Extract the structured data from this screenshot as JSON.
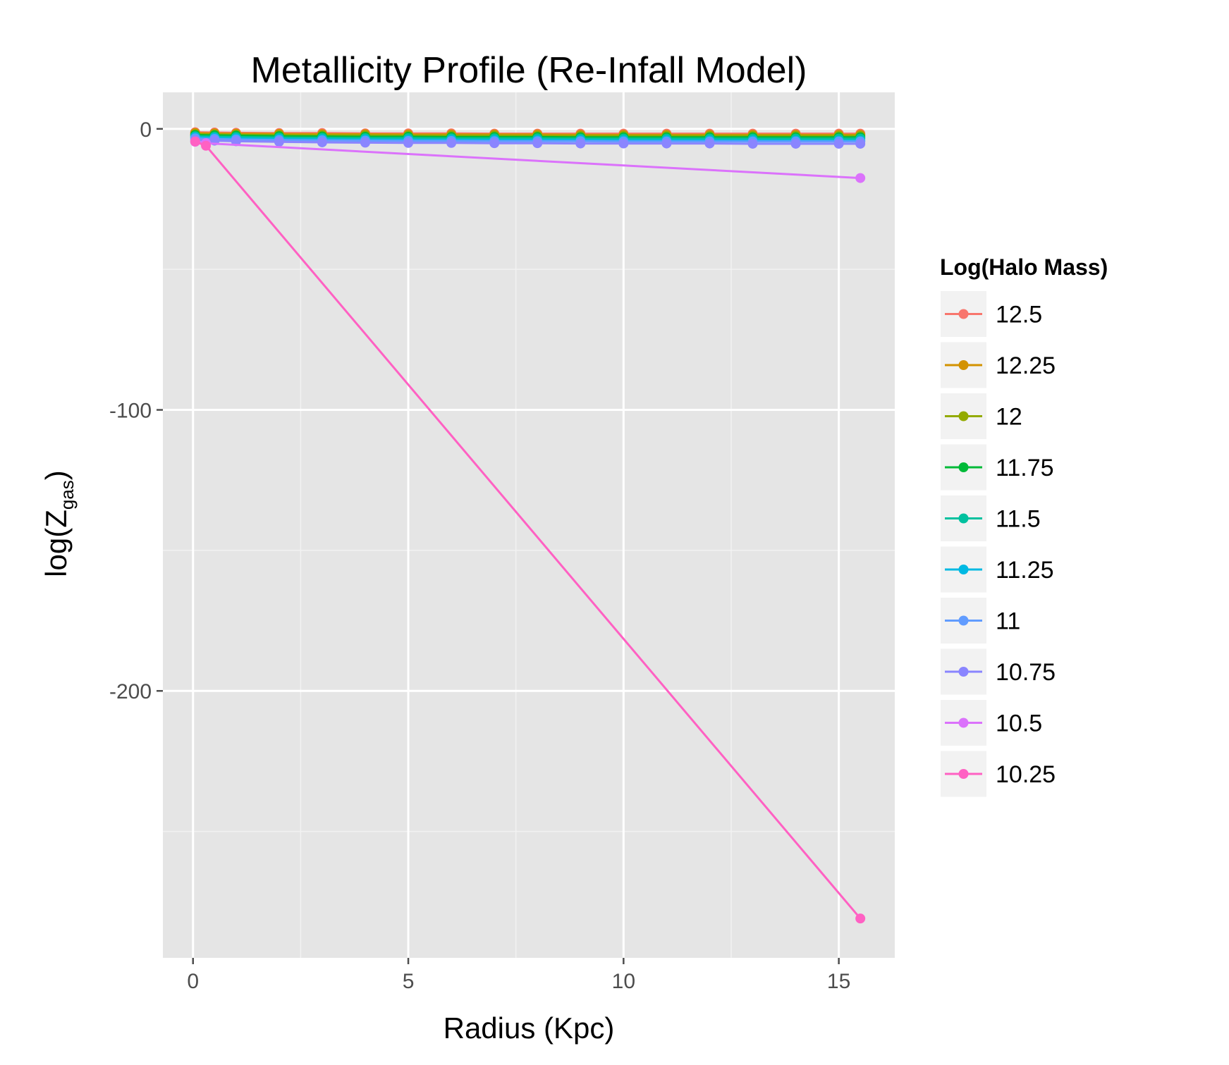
{
  "chart_data": {
    "type": "line",
    "title": "Metallicity Profile (Re-Infall Model)",
    "xlabel": "Radius (Kpc)",
    "ylabel_main": "log(Z",
    "ylabel_sub": "gas",
    "ylabel_close": ")",
    "xlim": [
      -0.7,
      16.3
    ],
    "ylim": [
      -295,
      13
    ],
    "x_ticks": [
      0,
      5,
      10,
      15
    ],
    "x_tick_labels": [
      "0",
      "5",
      "10",
      "15"
    ],
    "x_minor_ticks": [
      2.5,
      7.5,
      12.5
    ],
    "y_ticks": [
      0,
      -100,
      -200
    ],
    "y_tick_labels": [
      "0",
      "-100",
      "-200"
    ],
    "y_minor_ticks": [
      -50,
      -150,
      -250
    ],
    "grid": true,
    "legend_position": "right",
    "legend_title": "Log(Halo Mass)",
    "series": [
      {
        "name": "12.5",
        "color": "#F8766D",
        "x": [
          0.05,
          0.5,
          1,
          2,
          3,
          4,
          5,
          6,
          7,
          8,
          9,
          10,
          11,
          12,
          13,
          14,
          15,
          15.5
        ],
        "y": [
          -1.2,
          -1.3,
          -1.4,
          -1.5,
          -1.5,
          -1.6,
          -1.6,
          -1.6,
          -1.7,
          -1.7,
          -1.7,
          -1.7,
          -1.7,
          -1.7,
          -1.7,
          -1.7,
          -1.7,
          -1.7
        ]
      },
      {
        "name": "12.25",
        "color": "#D39200",
        "x": [
          0.05,
          0.5,
          1,
          2,
          3,
          4,
          5,
          6,
          7,
          8,
          9,
          10,
          11,
          12,
          13,
          14,
          15,
          15.5
        ],
        "y": [
          -1.5,
          -1.6,
          -1.7,
          -1.8,
          -1.9,
          -1.9,
          -2.0,
          -2.0,
          -2.0,
          -2.0,
          -2.1,
          -2.1,
          -2.1,
          -2.1,
          -2.1,
          -2.1,
          -2.1,
          -2.1
        ]
      },
      {
        "name": "12",
        "color": "#93AA00",
        "x": [
          0.05,
          0.5,
          1,
          2,
          3,
          4,
          5,
          6,
          7,
          8,
          9,
          10,
          11,
          12,
          13,
          14,
          15,
          15.5
        ],
        "y": [
          -1.9,
          -2.0,
          -2.1,
          -2.2,
          -2.3,
          -2.3,
          -2.4,
          -2.4,
          -2.4,
          -2.5,
          -2.5,
          -2.5,
          -2.5,
          -2.5,
          -2.5,
          -2.5,
          -2.5,
          -2.5
        ]
      },
      {
        "name": "11.75",
        "color": "#00BA38",
        "x": [
          0.05,
          0.5,
          1,
          2,
          3,
          4,
          5,
          6,
          7,
          8,
          9,
          10,
          11,
          12,
          13,
          14,
          15,
          15.5
        ],
        "y": [
          -2.2,
          -2.3,
          -2.4,
          -2.6,
          -2.7,
          -2.8,
          -2.8,
          -2.9,
          -2.9,
          -2.9,
          -3.0,
          -3.0,
          -3.0,
          -3.0,
          -3.0,
          -3.0,
          -3.0,
          -3.0
        ]
      },
      {
        "name": "11.5",
        "color": "#00C19F",
        "x": [
          0.05,
          0.5,
          1,
          2,
          3,
          4,
          5,
          6,
          7,
          8,
          9,
          10,
          11,
          12,
          13,
          14,
          15,
          15.5
        ],
        "y": [
          -2.6,
          -2.8,
          -2.9,
          -3.1,
          -3.2,
          -3.3,
          -3.3,
          -3.4,
          -3.4,
          -3.4,
          -3.5,
          -3.5,
          -3.5,
          -3.5,
          -3.5,
          -3.5,
          -3.5,
          -3.5
        ]
      },
      {
        "name": "11.25",
        "color": "#00B9E3",
        "x": [
          0.05,
          0.5,
          1,
          2,
          3,
          4,
          5,
          6,
          7,
          8,
          9,
          10,
          11,
          12,
          13,
          14,
          15,
          15.5
        ],
        "y": [
          -3.0,
          -3.2,
          -3.4,
          -3.6,
          -3.7,
          -3.8,
          -3.9,
          -3.9,
          -4.0,
          -4.0,
          -4.0,
          -4.1,
          -4.1,
          -4.1,
          -4.1,
          -4.2,
          -4.2,
          -4.2
        ]
      },
      {
        "name": "11",
        "color": "#619CFF",
        "x": [
          0.05,
          0.5,
          1,
          2,
          3,
          4,
          5,
          6,
          7,
          8,
          9,
          10,
          11,
          12,
          13,
          14,
          15,
          15.5
        ],
        "y": [
          -3.4,
          -3.6,
          -3.8,
          -4.0,
          -4.1,
          -4.2,
          -4.3,
          -4.3,
          -4.4,
          -4.4,
          -4.4,
          -4.5,
          -4.5,
          -4.5,
          -4.5,
          -4.5,
          -4.5,
          -4.5
        ]
      },
      {
        "name": "10.75",
        "color": "#8A85FF",
        "x": [
          0.05,
          0.5,
          1,
          2,
          3,
          4,
          5,
          6,
          7,
          8,
          9,
          10,
          11,
          12,
          13,
          14,
          15,
          15.5
        ],
        "y": [
          -4.0,
          -4.2,
          -4.4,
          -4.6,
          -4.8,
          -4.9,
          -5.0,
          -5.0,
          -5.1,
          -5.1,
          -5.2,
          -5.2,
          -5.2,
          -5.2,
          -5.3,
          -5.3,
          -5.3,
          -5.3
        ]
      },
      {
        "name": "10.5",
        "color": "#DB72FB",
        "x": [
          0.05,
          0.3,
          15.5
        ],
        "y": [
          -4.6,
          -5.1,
          -17.5
        ]
      },
      {
        "name": "10.25",
        "color": "#FF61C3",
        "x": [
          0.05,
          0.3,
          15.5
        ],
        "y": [
          -4.5,
          -6.0,
          -281
        ]
      }
    ]
  }
}
